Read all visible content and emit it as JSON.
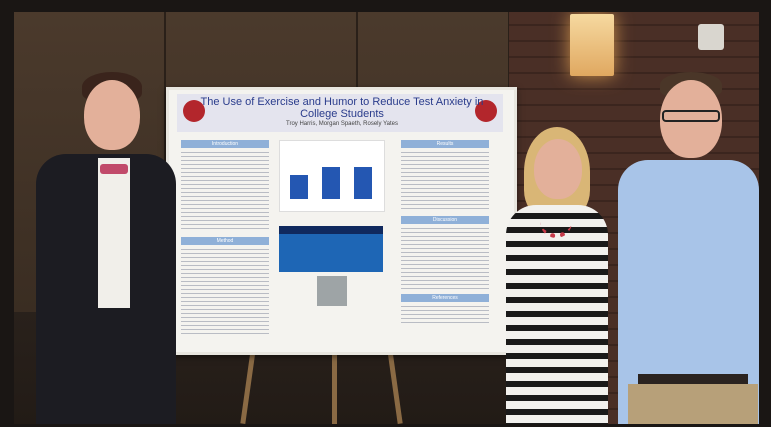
{
  "poster": {
    "title": "The Use of Exercise and Humor to Reduce Test Anxiety in College Students",
    "authors": "Troy Harris, Morgan Spaeth, Rosely Yates",
    "logo_text": "VITERBO",
    "sections": {
      "introduction": "Introduction",
      "method": "Method",
      "results": "Results",
      "discussion": "Discussion",
      "references": "References"
    },
    "chart_title": "Comparison of Each Condition's Average Test Score",
    "table_title": "Summary Results and Subject A"
  },
  "colors": {
    "poster_title": "#2a3c8c",
    "section_header": "#8fb0d8",
    "logo_red": "#b3262c",
    "chart_bar": "#2457b2"
  }
}
